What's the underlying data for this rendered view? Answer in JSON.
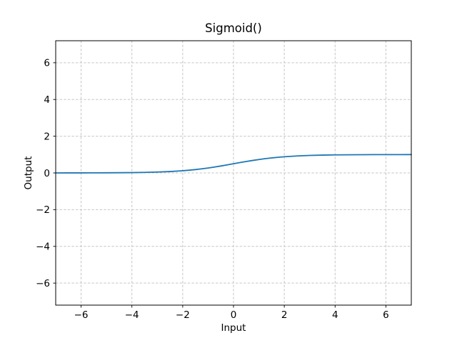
{
  "figure": {
    "background": "#ffffff",
    "text_color": "#000000",
    "spine_color": "#000000"
  },
  "chart_data": {
    "type": "line",
    "title": "Sigmoid()",
    "xlabel": "Input",
    "ylabel": "Output",
    "xlim": [
      -7,
      7
    ],
    "ylim": [
      -7.2,
      7.2
    ],
    "x_ticks": [
      -6,
      -4,
      -2,
      0,
      2,
      4,
      6
    ],
    "y_ticks": [
      -6,
      -4,
      -2,
      0,
      2,
      4,
      6
    ],
    "grid": true,
    "grid_style": "dashed",
    "grid_color": "#c6c6c6",
    "legend": "none",
    "line_color": "#1f77b4",
    "line_width": 1.8,
    "series": [
      {
        "name": "Sigmoid",
        "x": [
          -7,
          -6.5,
          -6,
          -5.5,
          -5,
          -4.5,
          -4,
          -3.5,
          -3,
          -2.5,
          -2,
          -1.75,
          -1.5,
          -1.25,
          -1,
          -0.75,
          -0.5,
          -0.25,
          0,
          0.25,
          0.5,
          0.75,
          1,
          1.25,
          1.5,
          1.75,
          2,
          2.5,
          3,
          3.5,
          4,
          4.5,
          5,
          5.5,
          6,
          6.5,
          7
        ],
        "y": [
          0.0009,
          0.0015,
          0.0025,
          0.0041,
          0.0067,
          0.0111,
          0.018,
          0.0293,
          0.0474,
          0.0759,
          0.1192,
          0.148,
          0.1824,
          0.2227,
          0.2689,
          0.3208,
          0.3775,
          0.4378,
          0.5,
          0.5622,
          0.6225,
          0.6792,
          0.7311,
          0.7773,
          0.8176,
          0.852,
          0.8808,
          0.9241,
          0.9526,
          0.9707,
          0.982,
          0.9889,
          0.9933,
          0.9959,
          0.9975,
          0.9985,
          0.9991
        ]
      }
    ]
  }
}
